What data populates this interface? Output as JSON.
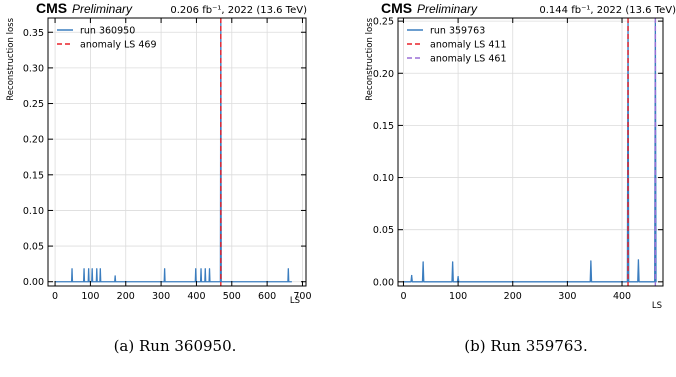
{
  "chart_data": [
    {
      "type": "line",
      "cms_label": "CMS",
      "preliminary_label": "Preliminary",
      "lumi_text": "0.206 fb⁻¹, 2022 (13.6 TeV)",
      "xlabel": "LS",
      "ylabel": "Reconstruction loss",
      "xlim": [
        -20,
        710
      ],
      "ylim": [
        -0.006,
        0.37
      ],
      "xticks": [
        0,
        100,
        200,
        300,
        400,
        500,
        600,
        700
      ],
      "yticks": [
        0.0,
        0.05,
        0.1,
        0.15,
        0.2,
        0.25,
        0.3,
        0.35
      ],
      "ytick_labels": [
        "0.00",
        "0.05",
        "0.10",
        "0.15",
        "0.20",
        "0.25",
        "0.30",
        "0.35"
      ],
      "grid": true,
      "legend_position": "top-left",
      "series": [
        {
          "name": "run 360950",
          "color": "#3b7dbf",
          "baseline": 0.0,
          "x_range": [
            0,
            670
          ],
          "spikes": [
            {
              "x": 48,
              "y": 0.018
            },
            {
              "x": 82,
              "y": 0.018
            },
            {
              "x": 95,
              "y": 0.018
            },
            {
              "x": 105,
              "y": 0.018
            },
            {
              "x": 118,
              "y": 0.018
            },
            {
              "x": 128,
              "y": 0.018
            },
            {
              "x": 170,
              "y": 0.008
            },
            {
              "x": 310,
              "y": 0.018
            },
            {
              "x": 398,
              "y": 0.018
            },
            {
              "x": 413,
              "y": 0.018
            },
            {
              "x": 425,
              "y": 0.018
            },
            {
              "x": 437,
              "y": 0.018
            },
            {
              "x": 469,
              "y": 0.365
            },
            {
              "x": 660,
              "y": 0.018
            }
          ]
        }
      ],
      "anomalies": [
        {
          "name": "anomaly LS 469",
          "x": 469,
          "color": "#e8222a",
          "style": "dashed"
        }
      ],
      "caption": "(a) Run 360950."
    },
    {
      "type": "line",
      "cms_label": "CMS",
      "preliminary_label": "Preliminary",
      "lumi_text": "0.144 fb⁻¹, 2022 (13.6 TeV)",
      "xlabel": "LS",
      "ylabel": "Reconstruction loss",
      "xlim": [
        -10,
        475
      ],
      "ylim": [
        -0.004,
        0.253
      ],
      "xticks": [
        0,
        100,
        200,
        300,
        400
      ],
      "yticks": [
        0.0,
        0.05,
        0.1,
        0.15,
        0.2,
        0.25
      ],
      "ytick_labels": [
        "0.00",
        "0.05",
        "0.10",
        "0.15",
        "0.20",
        "0.25"
      ],
      "grid": true,
      "legend_position": "top-left",
      "series": [
        {
          "name": "run 359763",
          "color": "#3b7dbf",
          "baseline": 0.0,
          "x_range": [
            0,
            462
          ],
          "spikes": [
            {
              "x": 15,
              "y": 0.006
            },
            {
              "x": 36,
              "y": 0.019
            },
            {
              "x": 90,
              "y": 0.019
            },
            {
              "x": 100,
              "y": 0.005
            },
            {
              "x": 343,
              "y": 0.02
            },
            {
              "x": 411,
              "y": 0.25
            },
            {
              "x": 430,
              "y": 0.021
            },
            {
              "x": 461,
              "y": 0.25
            }
          ]
        }
      ],
      "anomalies": [
        {
          "name": "anomaly LS 411",
          "x": 411,
          "color": "#e8222a",
          "style": "dashed"
        },
        {
          "name": "anomaly LS 461",
          "x": 461,
          "color": "#9a6fd6",
          "style": "dashed"
        }
      ],
      "caption": "(b) Run 359763."
    }
  ]
}
